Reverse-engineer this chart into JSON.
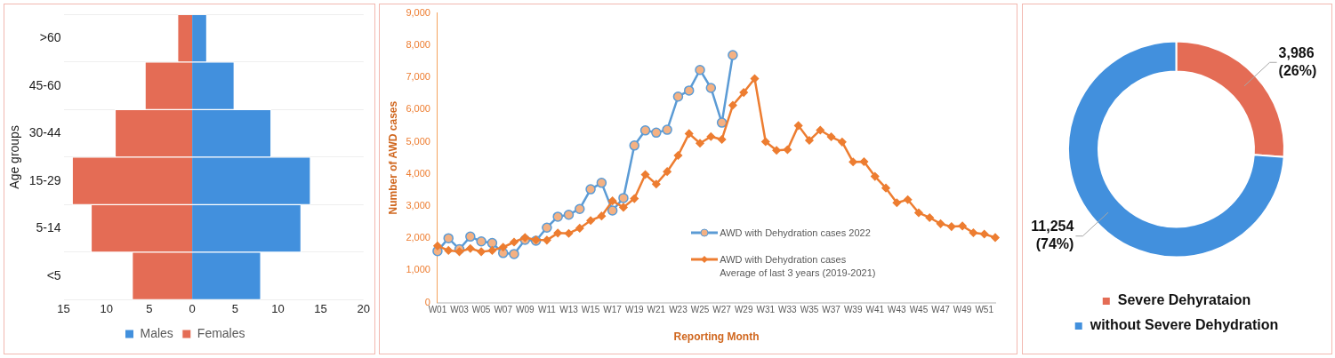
{
  "chart_data": [
    {
      "type": "bar",
      "orientation": "horizontal",
      "stacked": true,
      "ylabel": "Age groups",
      "categories": [
        ">60",
        "45-60",
        "30-44",
        "15-29",
        "5-14",
        "<5"
      ],
      "series": [
        {
          "name": "Males",
          "color": "#4290dd",
          "values": [
            1.7,
            4.9,
            9.2,
            13.8,
            12.7,
            8.0
          ]
        },
        {
          "name": "Females",
          "color": "#e46c55",
          "values": [
            -1.7,
            -5.5,
            -9.0,
            -14.0,
            -11.8,
            -7.0
          ]
        }
      ],
      "xlim": [
        -15,
        20
      ],
      "xticks": [
        {
          "value": -15,
          "label": "15"
        },
        {
          "value": -10,
          "label": "10"
        },
        {
          "value": -5,
          "label": "5"
        },
        0,
        5,
        10,
        15,
        20
      ],
      "grid": "y",
      "legend": "bottom"
    },
    {
      "type": "line",
      "xlabel": "Reporting Month",
      "ylabel": "Number of AWD cases",
      "categories": [
        "W01",
        null,
        "W03",
        null,
        "W05",
        null,
        "W07",
        null,
        "W09",
        null,
        "W11",
        null,
        "W13",
        null,
        "W15",
        null,
        "W17",
        null,
        "W19",
        null,
        "W21",
        null,
        "W23",
        null,
        "W25",
        null,
        "W27",
        null,
        "W29",
        null,
        "W31",
        null,
        "W33",
        null,
        "W35",
        null,
        "W37",
        null,
        "W39",
        null,
        "W41",
        null,
        "W43",
        null,
        "W45",
        null,
        "W47",
        null,
        "W49",
        null,
        "W51",
        null
      ],
      "series": [
        {
          "name": "AWD with Dehydration cases 2022",
          "color": "#5b9bd5",
          "marker": "circle",
          "values": [
            1600,
            2000,
            1660,
            2050,
            1900,
            1850,
            1540,
            1510,
            1950,
            1920,
            2330,
            2670,
            2730,
            2910,
            3520,
            3720,
            2860,
            3250,
            4880,
            5350,
            5280,
            5370,
            6400,
            6590,
            7230,
            6670,
            5590,
            7690,
            null,
            null,
            null,
            null,
            null,
            null,
            null,
            null,
            null,
            null,
            null,
            null,
            null,
            null,
            null,
            null,
            null,
            null,
            null,
            null,
            null,
            null,
            null,
            null
          ]
        },
        {
          "name": "AWD with Dehydration cases\nAverage of last 3 years (2019-2021)",
          "color": "#ed7d31",
          "marker": "diamond",
          "values": [
            1760,
            1620,
            1580,
            1680,
            1580,
            1620,
            1720,
            1880,
            2020,
            1950,
            1940,
            2160,
            2150,
            2310,
            2550,
            2690,
            3160,
            2960,
            3230,
            3980,
            3680,
            4070,
            4570,
            5250,
            4950,
            5160,
            5070,
            6130,
            6530,
            6960,
            5000,
            4730,
            4750,
            5500,
            5040,
            5360,
            5150,
            4990,
            4370,
            4380,
            3920,
            3560,
            3100,
            3200,
            2790,
            2640,
            2450,
            2360,
            2380,
            2170,
            2130,
            2020
          ]
        }
      ],
      "ylim": [
        0,
        9000
      ],
      "yticks": [
        0,
        {
          "value": 1000,
          "label": "1,000"
        },
        {
          "value": 2000,
          "label": "2,000"
        },
        {
          "value": 3000,
          "label": "3,000"
        },
        {
          "value": 4000,
          "label": "4,000"
        },
        {
          "value": 5000,
          "label": "5,000"
        },
        {
          "value": 6000,
          "label": "6,000"
        },
        {
          "value": 7000,
          "label": "7,000"
        },
        {
          "value": 8000,
          "label": "8,000"
        },
        {
          "value": 9000,
          "label": "9,000"
        }
      ],
      "grid": false,
      "legend": "bottom right"
    },
    {
      "type": "donut",
      "categories": [
        "Severe Dehyrataion",
        "without Severe Dehydration"
      ],
      "values": [
        3986,
        11254
      ],
      "colors": [
        "#e46c55",
        "#4290dd"
      ],
      "value_labels": [
        "3,986\n(26%)",
        "11,254\n(74%)"
      ],
      "legend": "bottom"
    }
  ]
}
